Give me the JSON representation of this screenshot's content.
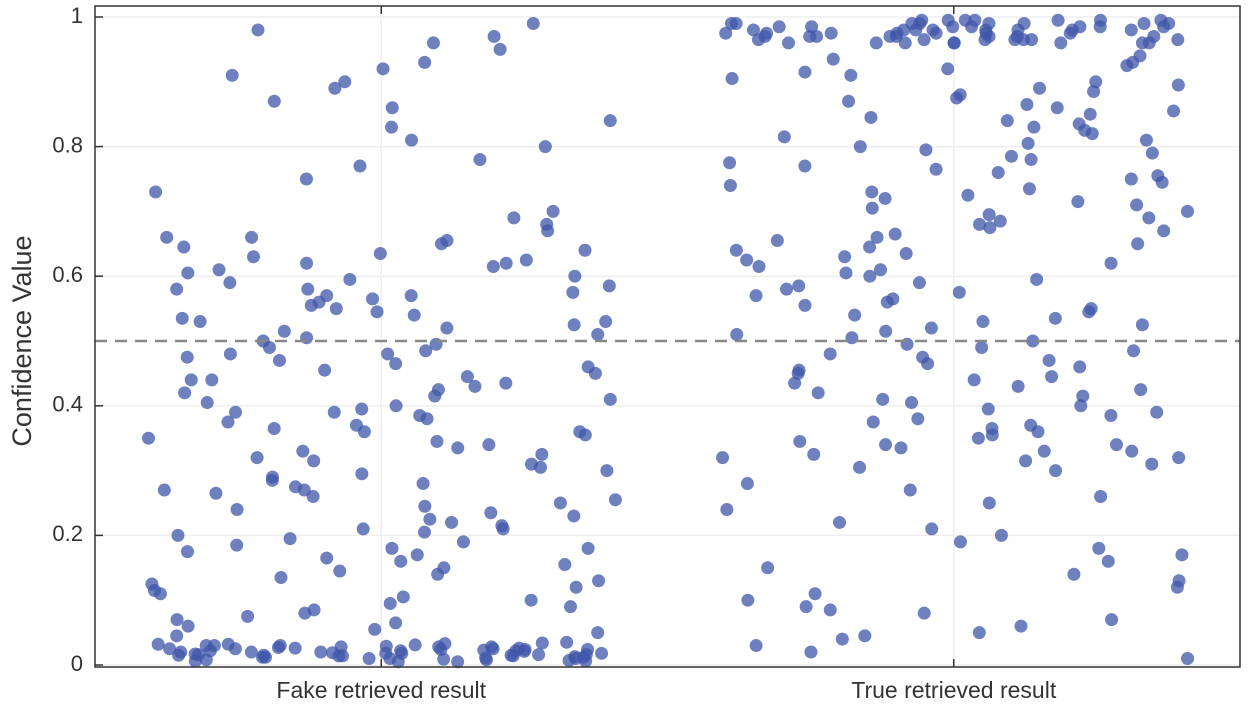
{
  "chart_data": {
    "type": "strip",
    "ylabel": "Confidence Value",
    "categories": [
      "Fake retrieved result",
      "True retrieved result"
    ],
    "color": "#3f55a8",
    "ylim": [
      0,
      1
    ],
    "yticks": [
      0,
      0.2,
      0.4,
      0.6,
      0.8,
      1
    ],
    "grid": true,
    "hline": 0.5,
    "values": [
      [
        0.91,
        0.97,
        0.81,
        0.77,
        0.87,
        0.99,
        0.95,
        0.92,
        0.86,
        0.83,
        0.73,
        0.93,
        0.96,
        0.89,
        0.8,
        0.75,
        0.9,
        0.98,
        0.84,
        0.78,
        0.7,
        0.68,
        0.66,
        0.65,
        0.64,
        0.63,
        0.62,
        0.61,
        0.6,
        0.59,
        0.58,
        0.57,
        0.56,
        0.55,
        0.54,
        0.53,
        0.52,
        0.51,
        0.5,
        0.49,
        0.69,
        0.67,
        0.655,
        0.645,
        0.635,
        0.625,
        0.615,
        0.605,
        0.595,
        0.585,
        0.575,
        0.565,
        0.555,
        0.545,
        0.535,
        0.525,
        0.515,
        0.505,
        0.495,
        0.485,
        0.48,
        0.47,
        0.46,
        0.45,
        0.44,
        0.43,
        0.42,
        0.41,
        0.4,
        0.39,
        0.38,
        0.37,
        0.36,
        0.35,
        0.34,
        0.33,
        0.32,
        0.31,
        0.3,
        0.29,
        0.475,
        0.465,
        0.455,
        0.445,
        0.435,
        0.425,
        0.415,
        0.405,
        0.395,
        0.385,
        0.375,
        0.365,
        0.355,
        0.345,
        0.335,
        0.325,
        0.315,
        0.305,
        0.295,
        0.285,
        0.28,
        0.27,
        0.26,
        0.25,
        0.24,
        0.23,
        0.22,
        0.21,
        0.2,
        0.19,
        0.18,
        0.17,
        0.16,
        0.15,
        0.14,
        0.13,
        0.12,
        0.11,
        0.1,
        0.09,
        0.275,
        0.265,
        0.255,
        0.245,
        0.235,
        0.225,
        0.215,
        0.205,
        0.195,
        0.185,
        0.175,
        0.165,
        0.155,
        0.145,
        0.135,
        0.125,
        0.115,
        0.105,
        0.095,
        0.085,
        0.08,
        0.07,
        0.06,
        0.05,
        0.045,
        0.075,
        0.065,
        0.055,
        0.62,
        0.44,
        0.57,
        0.36,
        0.21,
        0.66,
        0.48,
        0.53,
        0.27,
        0.39,
        0.18,
        0.58,
        0.01,
        0.02,
        0.03,
        0.015,
        0.025,
        0.005,
        0.035,
        0.012,
        0.022,
        0.018,
        0.028,
        0.008,
        0.032,
        0.014,
        0.024,
        0.006,
        0.034,
        0.016,
        0.026,
        0.01,
        0.02,
        0.03,
        0.015,
        0.025,
        0.005,
        0.012,
        0.022,
        0.018,
        0.028,
        0.008,
        0.032,
        0.014,
        0.024,
        0.006,
        0.016,
        0.026,
        0.011,
        0.021,
        0.031,
        0.019,
        0.009,
        0.029,
        0.013,
        0.023,
        0.017,
        0.027,
        0.007,
        0.033,
        0.01,
        0.02,
        0.03,
        0.015,
        0.025,
        0.012,
        0.022,
        0.018,
        0.028,
        0.014,
        0.024,
        0.016
      ],
      [
        0.99,
        0.98,
        0.97,
        0.96,
        0.995,
        0.985,
        0.975,
        0.965,
        0.99,
        0.98,
        0.97,
        0.96,
        0.995,
        0.985,
        0.975,
        0.965,
        0.99,
        0.98,
        0.97,
        0.96,
        0.995,
        0.985,
        0.975,
        0.965,
        0.99,
        0.98,
        0.97,
        0.96,
        0.995,
        0.985,
        0.975,
        0.965,
        0.99,
        0.98,
        0.97,
        0.96,
        0.995,
        0.985,
        0.975,
        0.965,
        0.99,
        0.98,
        0.97,
        0.96,
        0.995,
        0.985,
        0.975,
        0.965,
        0.99,
        0.98,
        0.97,
        0.96,
        0.995,
        0.985,
        0.975,
        0.965,
        0.99,
        0.98,
        0.97,
        0.96,
        0.94,
        0.93,
        0.92,
        0.91,
        0.9,
        0.89,
        0.88,
        0.87,
        0.86,
        0.85,
        0.84,
        0.83,
        0.82,
        0.81,
        0.8,
        0.79,
        0.78,
        0.77,
        0.76,
        0.75,
        0.935,
        0.925,
        0.915,
        0.905,
        0.895,
        0.885,
        0.875,
        0.865,
        0.855,
        0.845,
        0.835,
        0.825,
        0.815,
        0.805,
        0.795,
        0.785,
        0.775,
        0.765,
        0.755,
        0.745,
        0.74,
        0.73,
        0.72,
        0.71,
        0.7,
        0.69,
        0.68,
        0.67,
        0.66,
        0.65,
        0.64,
        0.63,
        0.62,
        0.61,
        0.6,
        0.59,
        0.58,
        0.57,
        0.56,
        0.55,
        0.735,
        0.725,
        0.715,
        0.705,
        0.695,
        0.685,
        0.675,
        0.665,
        0.655,
        0.645,
        0.635,
        0.625,
        0.615,
        0.605,
        0.595,
        0.585,
        0.575,
        0.565,
        0.555,
        0.545,
        0.54,
        0.53,
        0.52,
        0.51,
        0.5,
        0.49,
        0.48,
        0.47,
        0.46,
        0.45,
        0.44,
        0.43,
        0.42,
        0.41,
        0.4,
        0.39,
        0.38,
        0.37,
        0.36,
        0.35,
        0.535,
        0.525,
        0.515,
        0.505,
        0.495,
        0.485,
        0.475,
        0.465,
        0.455,
        0.445,
        0.435,
        0.425,
        0.415,
        0.405,
        0.395,
        0.385,
        0.375,
        0.365,
        0.355,
        0.345,
        0.34,
        0.33,
        0.32,
        0.31,
        0.3,
        0.335,
        0.325,
        0.315,
        0.305,
        0.33,
        0.32,
        0.34,
        0.28,
        0.26,
        0.24,
        0.22,
        0.21,
        0.19,
        0.18,
        0.16,
        0.14,
        0.13,
        0.11,
        0.1,
        0.09,
        0.08,
        0.07,
        0.06,
        0.05,
        0.04,
        0.03,
        0.02,
        0.25,
        0.17,
        0.12,
        0.15,
        0.085,
        0.045,
        0.01,
        0.2,
        0.27
      ]
    ]
  }
}
